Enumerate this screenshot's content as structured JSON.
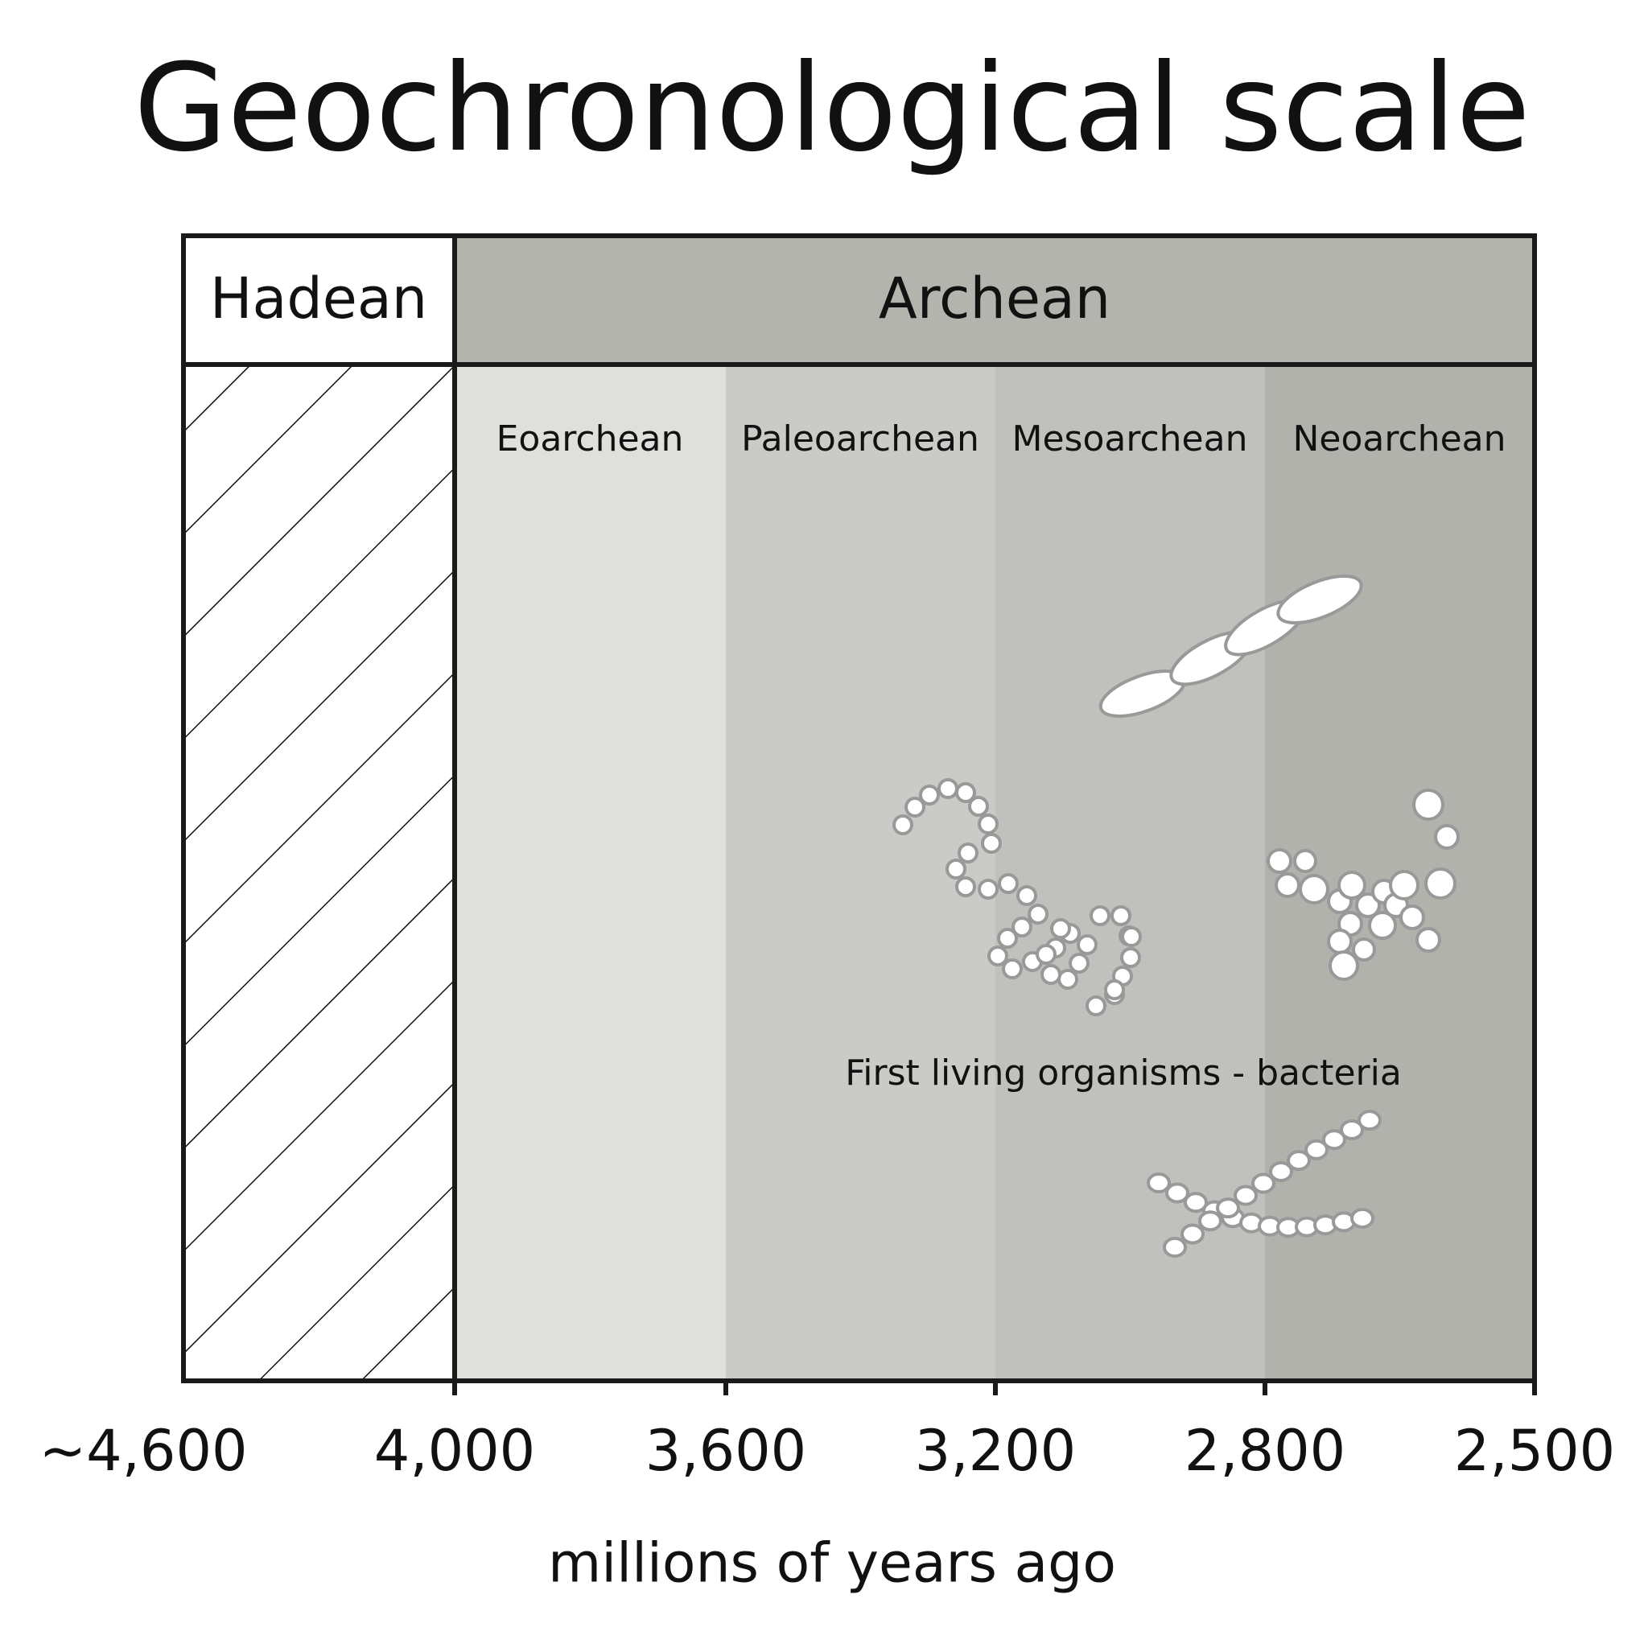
{
  "title": "Geochronological scale",
  "eons": [
    {
      "label": "Hadean"
    },
    {
      "label": "Archean"
    }
  ],
  "eras": [
    {
      "label": "Eoarchean"
    },
    {
      "label": "Paleoarchean"
    },
    {
      "label": "Mesoarchean"
    },
    {
      "label": "Neoarchean"
    }
  ],
  "axis": {
    "ticks": [
      "~4,600",
      "4,000",
      "3,600",
      "3,200",
      "2,800",
      "2,500"
    ],
    "label": "millions of years ago"
  },
  "annotation": "First living organisms - bacteria"
}
